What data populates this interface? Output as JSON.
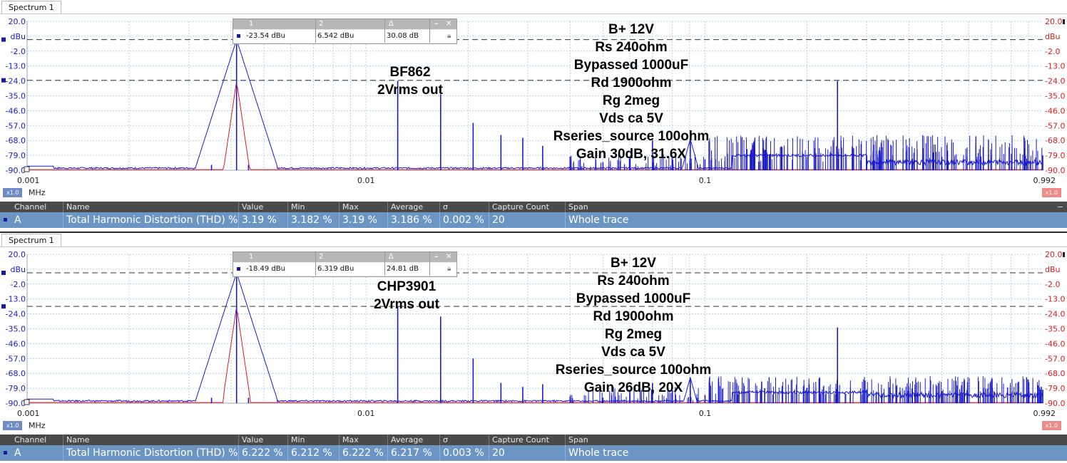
{
  "panels": [
    {
      "tab_label": "Spectrum 1",
      "cursor_table": {
        "headers": [
          "1",
          "2",
          "Δ"
        ],
        "values": [
          "-23.54 dBu",
          "6.542 dBu",
          "30.08 dB"
        ],
        "controls": [
          "–",
          "✕"
        ]
      },
      "annotation_left": [
        "BF862",
        "2Vrms out"
      ],
      "annotation_right": [
        "B+ 12V",
        "Rs 240ohm",
        "Bypassed 1000uF",
        "Rd 1900ohm",
        "Rg 2meg",
        "Vds ca 5V",
        "Rseries_source 100ohm",
        "Gain 30dB, 31.6X"
      ],
      "x_zoom": "x1.0",
      "x_unit": "MHz",
      "y_zoom_right": "x1.0",
      "measurements": {
        "headers": [
          "Channel",
          "Name",
          "Value",
          "Min",
          "Max",
          "Average",
          "σ",
          "Capture Count",
          "Span"
        ],
        "row": [
          "A",
          "Total Harmonic Distortion (THD) %",
          "3.19 %",
          "3.182 %",
          "3.19 %",
          "3.186 %",
          "0.002 %",
          "20",
          "Whole trace"
        ]
      }
    },
    {
      "tab_label": "Spectrum 1",
      "cursor_table": {
        "headers": [
          "1",
          "2",
          "Δ"
        ],
        "values": [
          "-18.49 dBu",
          "6.319 dBu",
          "24.81 dB"
        ],
        "controls": [
          "–",
          "✕"
        ]
      },
      "annotation_left": [
        "CHP3901",
        "2Vrms out"
      ],
      "annotation_right": [
        "B+ 12V",
        "Rs 240ohm",
        "Bypassed 1000uF",
        "Rd 1900ohm",
        "Rg 2meg",
        "Vds ca 5V",
        "Rseries_source 100ohm",
        "Gain 26dB, 20X"
      ],
      "x_zoom": "x1.0",
      "x_unit": "MHz",
      "y_zoom_right": "x1.0",
      "measurements": {
        "headers": [
          "Channel",
          "Name",
          "Value",
          "Min",
          "Max",
          "Average",
          "σ",
          "Capture Count",
          "Span"
        ],
        "row": [
          "A",
          "Total Harmonic Distortion (THD) %",
          "6.222 %",
          "6.212 %",
          "6.222 %",
          "6.217 %",
          "0.003 %",
          "20",
          "Whole trace"
        ]
      }
    }
  ],
  "chart_data": [
    {
      "type": "line",
      "x_scale": "log",
      "xlim": [
        0.001,
        0.992
      ],
      "x_ticks": [
        "0.001",
        "0.01",
        "0.1",
        "0.992"
      ],
      "ylim": [
        -90,
        20
      ],
      "y_ticks_left": [
        "20.0",
        "dBu",
        "-2.0",
        "-13.0",
        "-24.0",
        "-35.0",
        "-46.0",
        "-57.0",
        "-68.0",
        "-79.0",
        "-90.0"
      ],
      "y_ticks_right": [
        "20.0",
        "dBu",
        "-2.0",
        "-13.0",
        "-24.0",
        "-35.0",
        "-46.0",
        "-57.0",
        "-68.0",
        "-79.0",
        "-90.0"
      ],
      "cursors_dbu": [
        6.542,
        -23.54
      ],
      "grid": true,
      "colors": {
        "channel_a": "#1a1acc",
        "channel_b": "#e01b1b",
        "cursor": "#333333"
      },
      "series": [
        {
          "values_x": [
            0.001,
            0.0025,
            0.0035,
            0.00415,
            0.0045,
            0.0055,
            0.0075,
            0.0124,
            0.0166,
            0.0207,
            0.025,
            0.029,
            0.0332,
            0.04,
            0.05,
            0.06,
            0.07,
            0.08,
            0.0905,
            0.1,
            0.15,
            0.2,
            0.246,
            0.3,
            0.5,
            0.992
          ],
          "values_y": [
            -88,
            -89,
            -86,
            6.5,
            -86,
            -89,
            -89,
            -24,
            -34,
            -55,
            -64,
            -66,
            -72,
            -80,
            -84,
            -80,
            -68,
            -81,
            -66,
            -82,
            -75,
            -80,
            -24,
            -79,
            -80,
            -79
          ]
        },
        {
          "values_x": [
            0.001,
            0.00415,
            0.0124,
            0.246,
            0.992
          ],
          "values_y": [
            -90,
            -24,
            -83,
            -83,
            -90
          ]
        }
      ]
    },
    {
      "type": "line",
      "x_scale": "log",
      "xlim": [
        0.001,
        0.992
      ],
      "x_ticks": [
        "0.001",
        "0.01",
        "0.1",
        "0.992"
      ],
      "ylim": [
        -90,
        20
      ],
      "y_ticks_left": [
        "20.0",
        "dBu",
        "-2.0",
        "-13.0",
        "-24.0",
        "-35.0",
        "-46.0",
        "-57.0",
        "-68.0",
        "-79.0",
        "-90.0"
      ],
      "y_ticks_right": [
        "20.0",
        "dBu",
        "-2.0",
        "-13.0",
        "-24.0",
        "-35.0",
        "-46.0",
        "-57.0",
        "-68.0",
        "-79.0",
        "-90.0"
      ],
      "cursors_dbu": [
        6.319,
        -18.49
      ],
      "grid": true,
      "colors": {
        "channel_a": "#1a1acc",
        "channel_b": "#e01b1b",
        "cursor": "#333333"
      },
      "series": [
        {
          "values_x": [
            0.001,
            0.0025,
            0.0035,
            0.00415,
            0.0045,
            0.0055,
            0.0075,
            0.0124,
            0.0166,
            0.0207,
            0.025,
            0.029,
            0.0332,
            0.04,
            0.05,
            0.06,
            0.07,
            0.08,
            0.0905,
            0.1,
            0.15,
            0.2,
            0.246,
            0.3,
            0.5,
            0.992
          ],
          "values_y": [
            -88,
            -89,
            -86,
            6.3,
            -86,
            -89,
            -89,
            -18.5,
            -26,
            -57,
            -75,
            -78,
            -76,
            -85,
            -86,
            -80,
            -75,
            -83,
            -71,
            -84,
            -79,
            -82,
            -34,
            -80,
            -81,
            -80
          ]
        },
        {
          "values_x": [
            0.001,
            0.00415,
            0.0124,
            0.246,
            0.992
          ],
          "values_y": [
            -90,
            -18.5,
            -85,
            -85,
            -90
          ]
        }
      ]
    }
  ]
}
